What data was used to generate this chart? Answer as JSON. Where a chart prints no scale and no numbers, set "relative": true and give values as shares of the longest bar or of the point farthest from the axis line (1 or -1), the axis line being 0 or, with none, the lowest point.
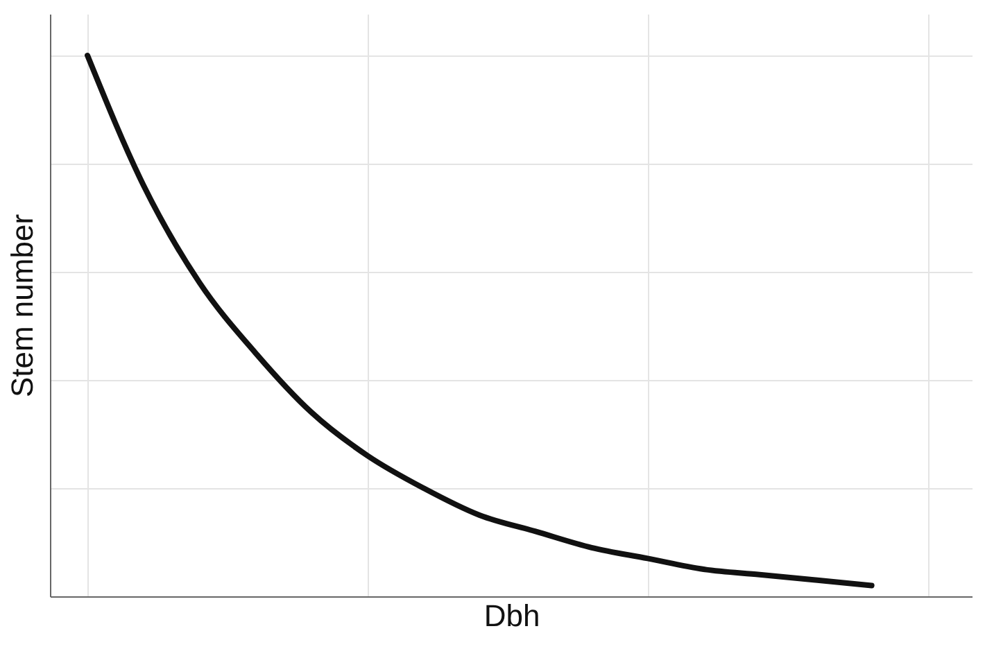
{
  "chart_data": {
    "type": "line",
    "xlabel": "Dbh",
    "ylabel": "Stem number",
    "relative": true,
    "grid": true,
    "categories": [
      null,
      null,
      null,
      null,
      null,
      null,
      null,
      null,
      null,
      null,
      null,
      null,
      null,
      null,
      null
    ],
    "series": [
      {
        "color": "#111111",
        "values": [
          1,
          0.76,
          0.58,
          0.45,
          0.34,
          0.26,
          0.2,
          0.15,
          0.12,
          0.09,
          0.07,
          0.05,
          0.04,
          0.03,
          0.02
        ]
      }
    ]
  }
}
